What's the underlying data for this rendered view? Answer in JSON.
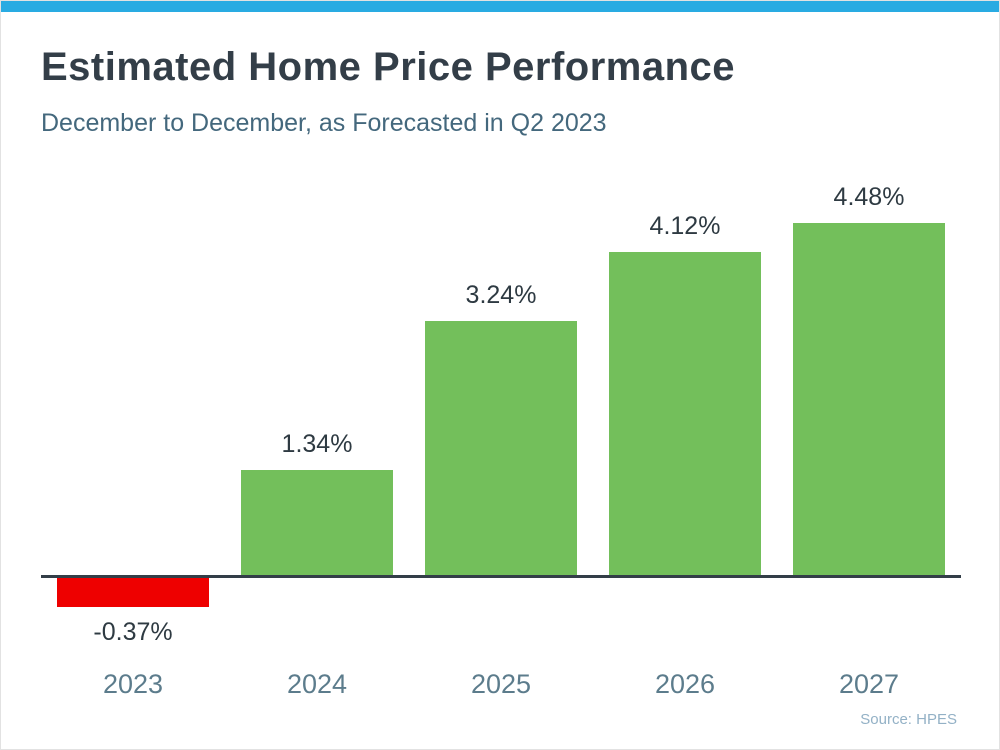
{
  "page": {
    "title": "Estimated Home Price Performance",
    "subtitle": "December to December, as Forecasted in Q2 2023",
    "source": "Source: HPES"
  },
  "colors": {
    "accent_bar": "#29ABE2",
    "positive_bar": "#73BF5B",
    "negative_bar": "#EE0000",
    "title_text": "#333E48",
    "subtitle_text": "#44687D",
    "value_label_text": "#2E3A42",
    "axis_line": "#333E48",
    "year_label_text": "#5C7C8C",
    "source_text": "#93B1C6"
  },
  "chart_data": {
    "type": "bar",
    "title": "Estimated Home Price Performance",
    "subtitle": "December to December, as Forecasted in Q2 2023",
    "categories": [
      "2023",
      "2024",
      "2025",
      "2026",
      "2027"
    ],
    "values": [
      -0.37,
      1.34,
      3.24,
      4.12,
      4.48
    ],
    "labels": [
      "-0.37%",
      "1.34%",
      "3.24%",
      "4.12%",
      "4.48%"
    ],
    "ylim": [
      -0.6,
      5.0
    ],
    "grid": false,
    "legend": false,
    "xlabel": "",
    "ylabel": "",
    "source": "Source: HPES"
  }
}
